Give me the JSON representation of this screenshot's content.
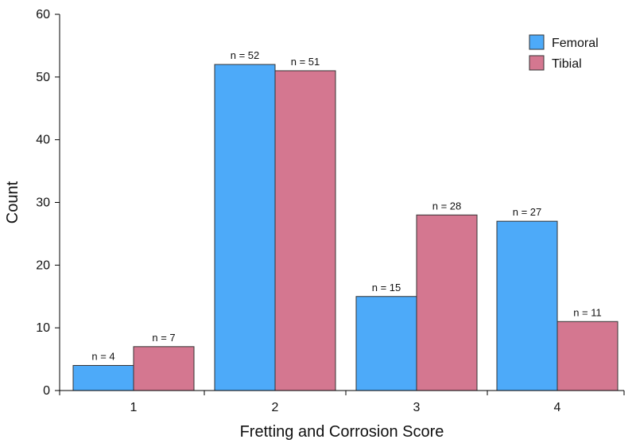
{
  "chart_data": {
    "type": "bar",
    "title": "",
    "xlabel": "Fretting and Corrosion Score",
    "ylabel": "Count",
    "categories": [
      "1",
      "2",
      "3",
      "4"
    ],
    "ylim": [
      0,
      60
    ],
    "yticks": [
      0,
      10,
      20,
      30,
      40,
      50,
      60
    ],
    "grid": false,
    "legend_position": "top-right",
    "series": [
      {
        "name": "Femoral",
        "color": "#4daaf9",
        "values": [
          4,
          52,
          15,
          27
        ],
        "labels": [
          "n = 4",
          "n = 52",
          "n = 15",
          "n = 27"
        ]
      },
      {
        "name": "Tibial",
        "color": "#d47790",
        "values": [
          7,
          51,
          28,
          11
        ],
        "labels": [
          "n = 7",
          "n = 51",
          "n = 28",
          "n = 11"
        ]
      }
    ]
  }
}
